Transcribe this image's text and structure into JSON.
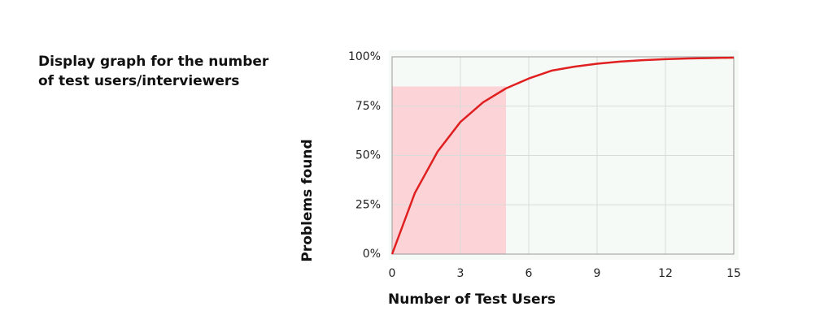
{
  "caption": [
    "Display graph for the number",
    "of test users/interviewers"
  ],
  "chart_data": {
    "type": "line",
    "xlabel": "Number of Test Users",
    "ylabel": "Problems found",
    "x": [
      0,
      1,
      2,
      3,
      4,
      5,
      6,
      7,
      8,
      9,
      10,
      11,
      12,
      13,
      14,
      15
    ],
    "series": [
      {
        "name": "Problems found",
        "color": "#e02020",
        "values": [
          0,
          31,
          52,
          67,
          77,
          84,
          89,
          93,
          95,
          96.5,
          97.6,
          98.3,
          98.8,
          99.2,
          99.4,
          99.6
        ]
      }
    ],
    "highlight_region": {
      "x": [
        0,
        5
      ],
      "y": [
        0,
        85
      ],
      "color": "#fcd4d8"
    },
    "xlim": [
      0,
      15
    ],
    "xticks": [
      0,
      3,
      6,
      9,
      12,
      15
    ],
    "ylim": [
      0,
      100
    ],
    "yticks": [
      {
        "value": 0,
        "label": "0%"
      },
      {
        "value": 25,
        "label": "25%"
      },
      {
        "value": 50,
        "label": "50%"
      },
      {
        "value": 75,
        "label": "75%"
      },
      {
        "value": 100,
        "label": "100%"
      }
    ],
    "grid": true,
    "legend": false
  }
}
